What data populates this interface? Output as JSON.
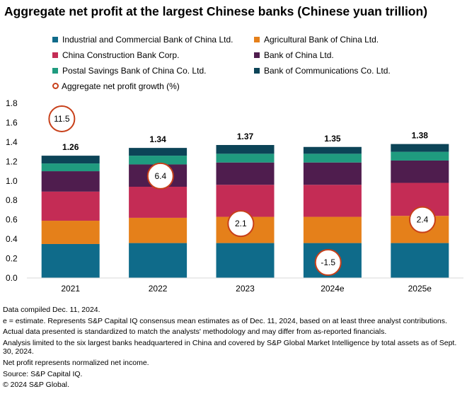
{
  "title": "Aggregate net profit at the largest Chinese banks (Chinese yuan trillion)",
  "colors": {
    "icbc": "#0f6b8a",
    "abc": "#e5801a",
    "ccb": "#c42c55",
    "boc": "#4f1d4e",
    "psbc": "#1f9b7f",
    "bocom": "#0c4457",
    "growth_ring": "#c8401a"
  },
  "chart_data": {
    "type": "bar",
    "stacked": true,
    "title": "Aggregate net profit at the largest Chinese banks (Chinese yuan trillion)",
    "categories": [
      "2021",
      "2022",
      "2023",
      "2024e",
      "2025e"
    ],
    "ylim": [
      0,
      1.8
    ],
    "yticks": [
      "0.0",
      "0.2",
      "0.4",
      "0.6",
      "0.8",
      "1.0",
      "1.2",
      "1.4",
      "1.6",
      "1.8"
    ],
    "series": [
      {
        "key": "icbc",
        "name": "Industrial and Commercial Bank of China Ltd.",
        "values": [
          0.35,
          0.36,
          0.36,
          0.36,
          0.36
        ]
      },
      {
        "key": "abc",
        "name": "Agricultural Bank of China Ltd.",
        "values": [
          0.24,
          0.26,
          0.27,
          0.27,
          0.28
        ]
      },
      {
        "key": "ccb",
        "name": "China Construction Bank Corp.",
        "values": [
          0.3,
          0.32,
          0.33,
          0.33,
          0.34
        ]
      },
      {
        "key": "boc",
        "name": "Bank of China Ltd.",
        "values": [
          0.21,
          0.23,
          0.23,
          0.23,
          0.23
        ]
      },
      {
        "key": "psbc",
        "name": "Postal Savings Bank of China Co. Ltd.",
        "values": [
          0.08,
          0.09,
          0.09,
          0.09,
          0.09
        ]
      },
      {
        "key": "bocom",
        "name": "Bank of Communications Co. Ltd.",
        "values": [
          0.08,
          0.08,
          0.09,
          0.07,
          0.08
        ]
      }
    ],
    "totals": [
      "1.26",
      "1.34",
      "1.37",
      "1.35",
      "1.38"
    ],
    "growth": {
      "name": "Aggregate net profit growth (%)",
      "labels": [
        "11.5",
        "6.4",
        "2.1",
        "-1.5",
        "2.4"
      ],
      "values": [
        11.5,
        6.4,
        2.1,
        -1.5,
        2.4
      ],
      "plot_positions_in_y_units": [
        1.64,
        1.05,
        0.56,
        0.16,
        0.6
      ]
    }
  },
  "notes": [
    "Data compiled Dec. 11, 2024.",
    "e = estimate. Represents S&P Capital IQ consensus mean estimates as of Dec. 11, 2024, based on at least three analyst contributions.",
    "Actual data presented is standardized to match the analysts' methodology and may differ from as-reported financials.",
    "Analysis limited to the six largest banks headquartered in China and covered by S&P Global Market Intelligence by total assets as of Sept. 30, 2024.",
    "Net profit represents normalized net income.",
    "Source: S&P Capital IQ.",
    "© 2024 S&P Global."
  ]
}
